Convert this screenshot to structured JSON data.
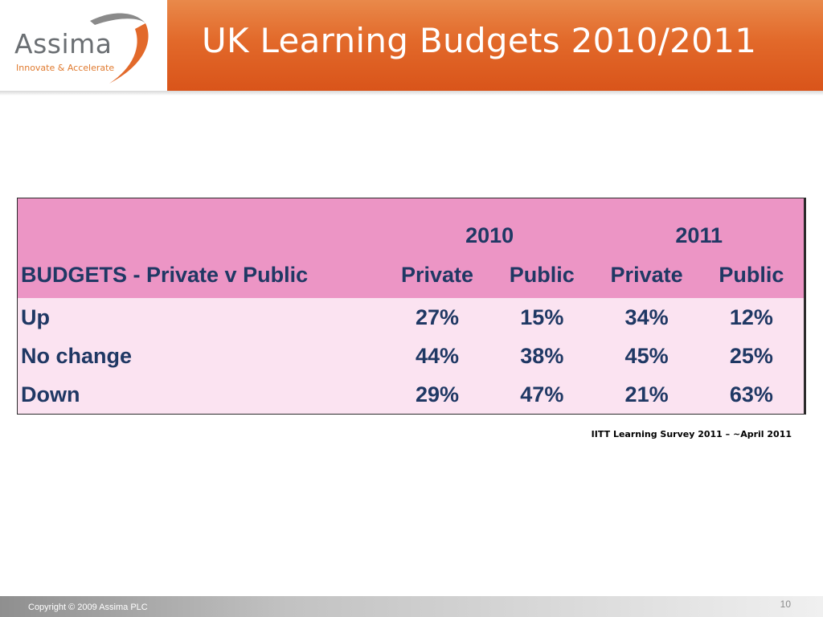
{
  "logo": {
    "name": "Assima",
    "tagline": "Innovate & Accelerate"
  },
  "header": {
    "title": "UK Learning Budgets 2010/2011"
  },
  "table": {
    "year_headers": [
      "2010",
      "2011"
    ],
    "label_header": "BUDGETS - Private v Public",
    "column_headers": [
      "Private",
      "Public",
      "Private",
      "Public"
    ],
    "rows": [
      {
        "label": "Up",
        "values": [
          "27%",
          "15%",
          "34%",
          "12%"
        ]
      },
      {
        "label": "No change",
        "values": [
          "44%",
          "38%",
          "45%",
          "25%"
        ]
      },
      {
        "label": "Down",
        "values": [
          "29%",
          "47%",
          "21%",
          "63%"
        ]
      }
    ]
  },
  "source": "IITT Learning Survey 2011 – ~April 2011",
  "footer": {
    "copyright": "Copyright © 2009 Assima PLC",
    "page_number": "10"
  },
  "colors": {
    "accent_orange": "#e2692a",
    "table_header_pink": "#ec95c5",
    "table_body_pink": "#fbe3f1",
    "table_text_navy": "#1f3864"
  }
}
